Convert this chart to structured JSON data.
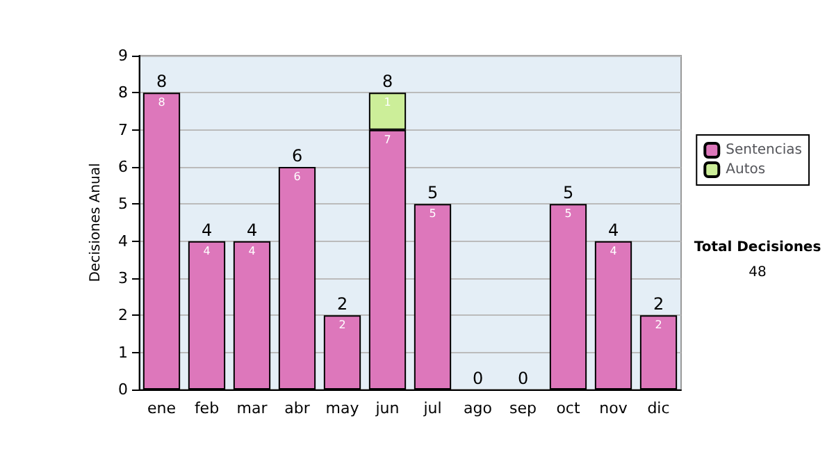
{
  "chart_data": {
    "type": "bar",
    "stacked": true,
    "ylabel": "Decisiones Anual",
    "categories": [
      "ene",
      "feb",
      "mar",
      "abr",
      "may",
      "jun",
      "jul",
      "ago",
      "sep",
      "oct",
      "nov",
      "dic"
    ],
    "series": [
      {
        "name": "Sentencias",
        "color": "#dd77bb",
        "values": [
          8,
          4,
          4,
          6,
          2,
          7,
          5,
          0,
          0,
          5,
          4,
          2
        ],
        "value_labels": [
          "8",
          "4",
          "4",
          "6",
          "2",
          "7",
          "5",
          null,
          null,
          "5",
          "4",
          "2"
        ]
      },
      {
        "name": "Autos",
        "color": "#ccee99",
        "values": [
          0,
          0,
          0,
          0,
          0,
          1,
          0,
          0,
          0,
          0,
          0,
          0
        ],
        "value_labels": [
          null,
          null,
          null,
          null,
          null,
          "1",
          null,
          null,
          null,
          null,
          null,
          null
        ]
      }
    ],
    "totals": [
      "8",
      "4",
      "4",
      "6",
      "2",
      "8",
      "5",
      "0",
      "0",
      "5",
      "4",
      "2"
    ],
    "ylim": [
      0,
      9
    ],
    "yticks": [
      0,
      1,
      2,
      3,
      4,
      5,
      6,
      7,
      8,
      9
    ],
    "grid": "y",
    "legend": "right",
    "annotations": [
      "Total Decisiones",
      "48"
    ]
  }
}
